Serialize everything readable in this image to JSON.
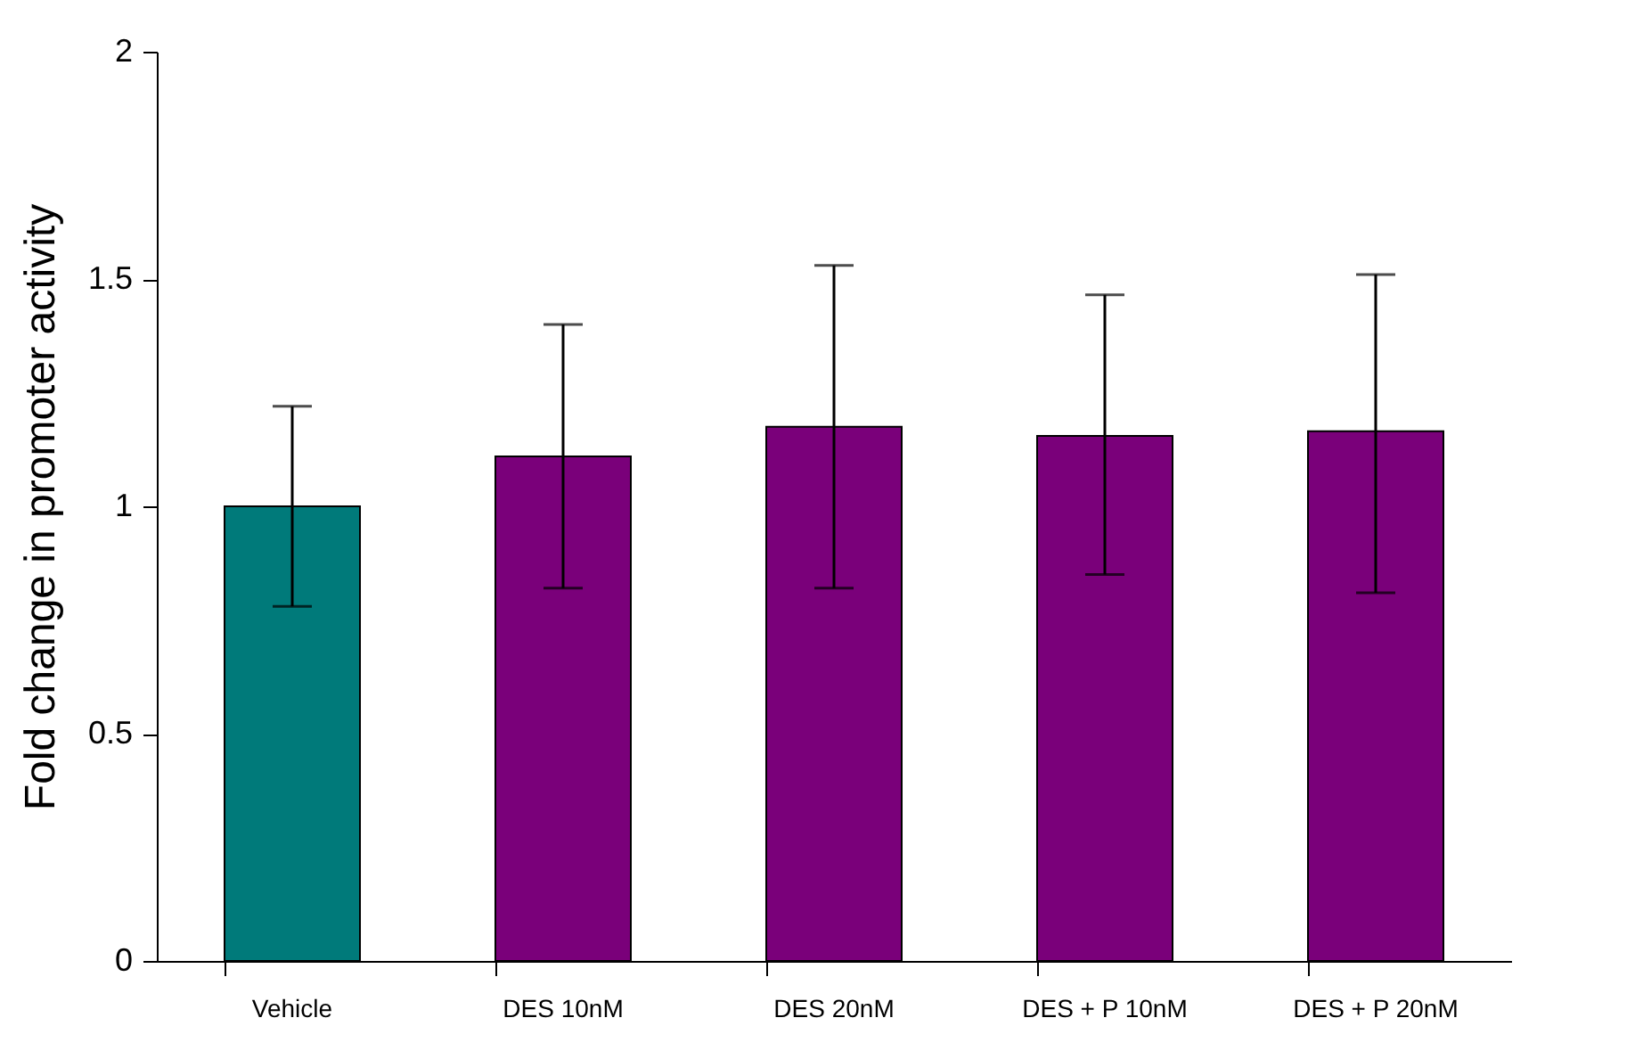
{
  "chart_data": {
    "type": "bar",
    "ylabel": "Fold change in promoter activity",
    "categories": [
      "Vehicle",
      "DES 10nM",
      "DES 20nM",
      "DES + P 10nM",
      "DES + P 20nM"
    ],
    "values": [
      1.0,
      1.11,
      1.175,
      1.155,
      1.165
    ],
    "colors": [
      "#007a7a",
      "#7a007a",
      "#7a007a",
      "#7a007a",
      "#7a007a"
    ],
    "errors": [
      [
        0.78,
        1.22
      ],
      [
        0.82,
        1.4
      ],
      [
        0.82,
        1.53
      ],
      [
        0.85,
        1.465
      ],
      [
        0.81,
        1.51
      ]
    ],
    "ylim": [
      0,
      2
    ],
    "yticks": [
      0,
      0.5,
      1,
      1.5,
      2
    ],
    "grid": false
  }
}
